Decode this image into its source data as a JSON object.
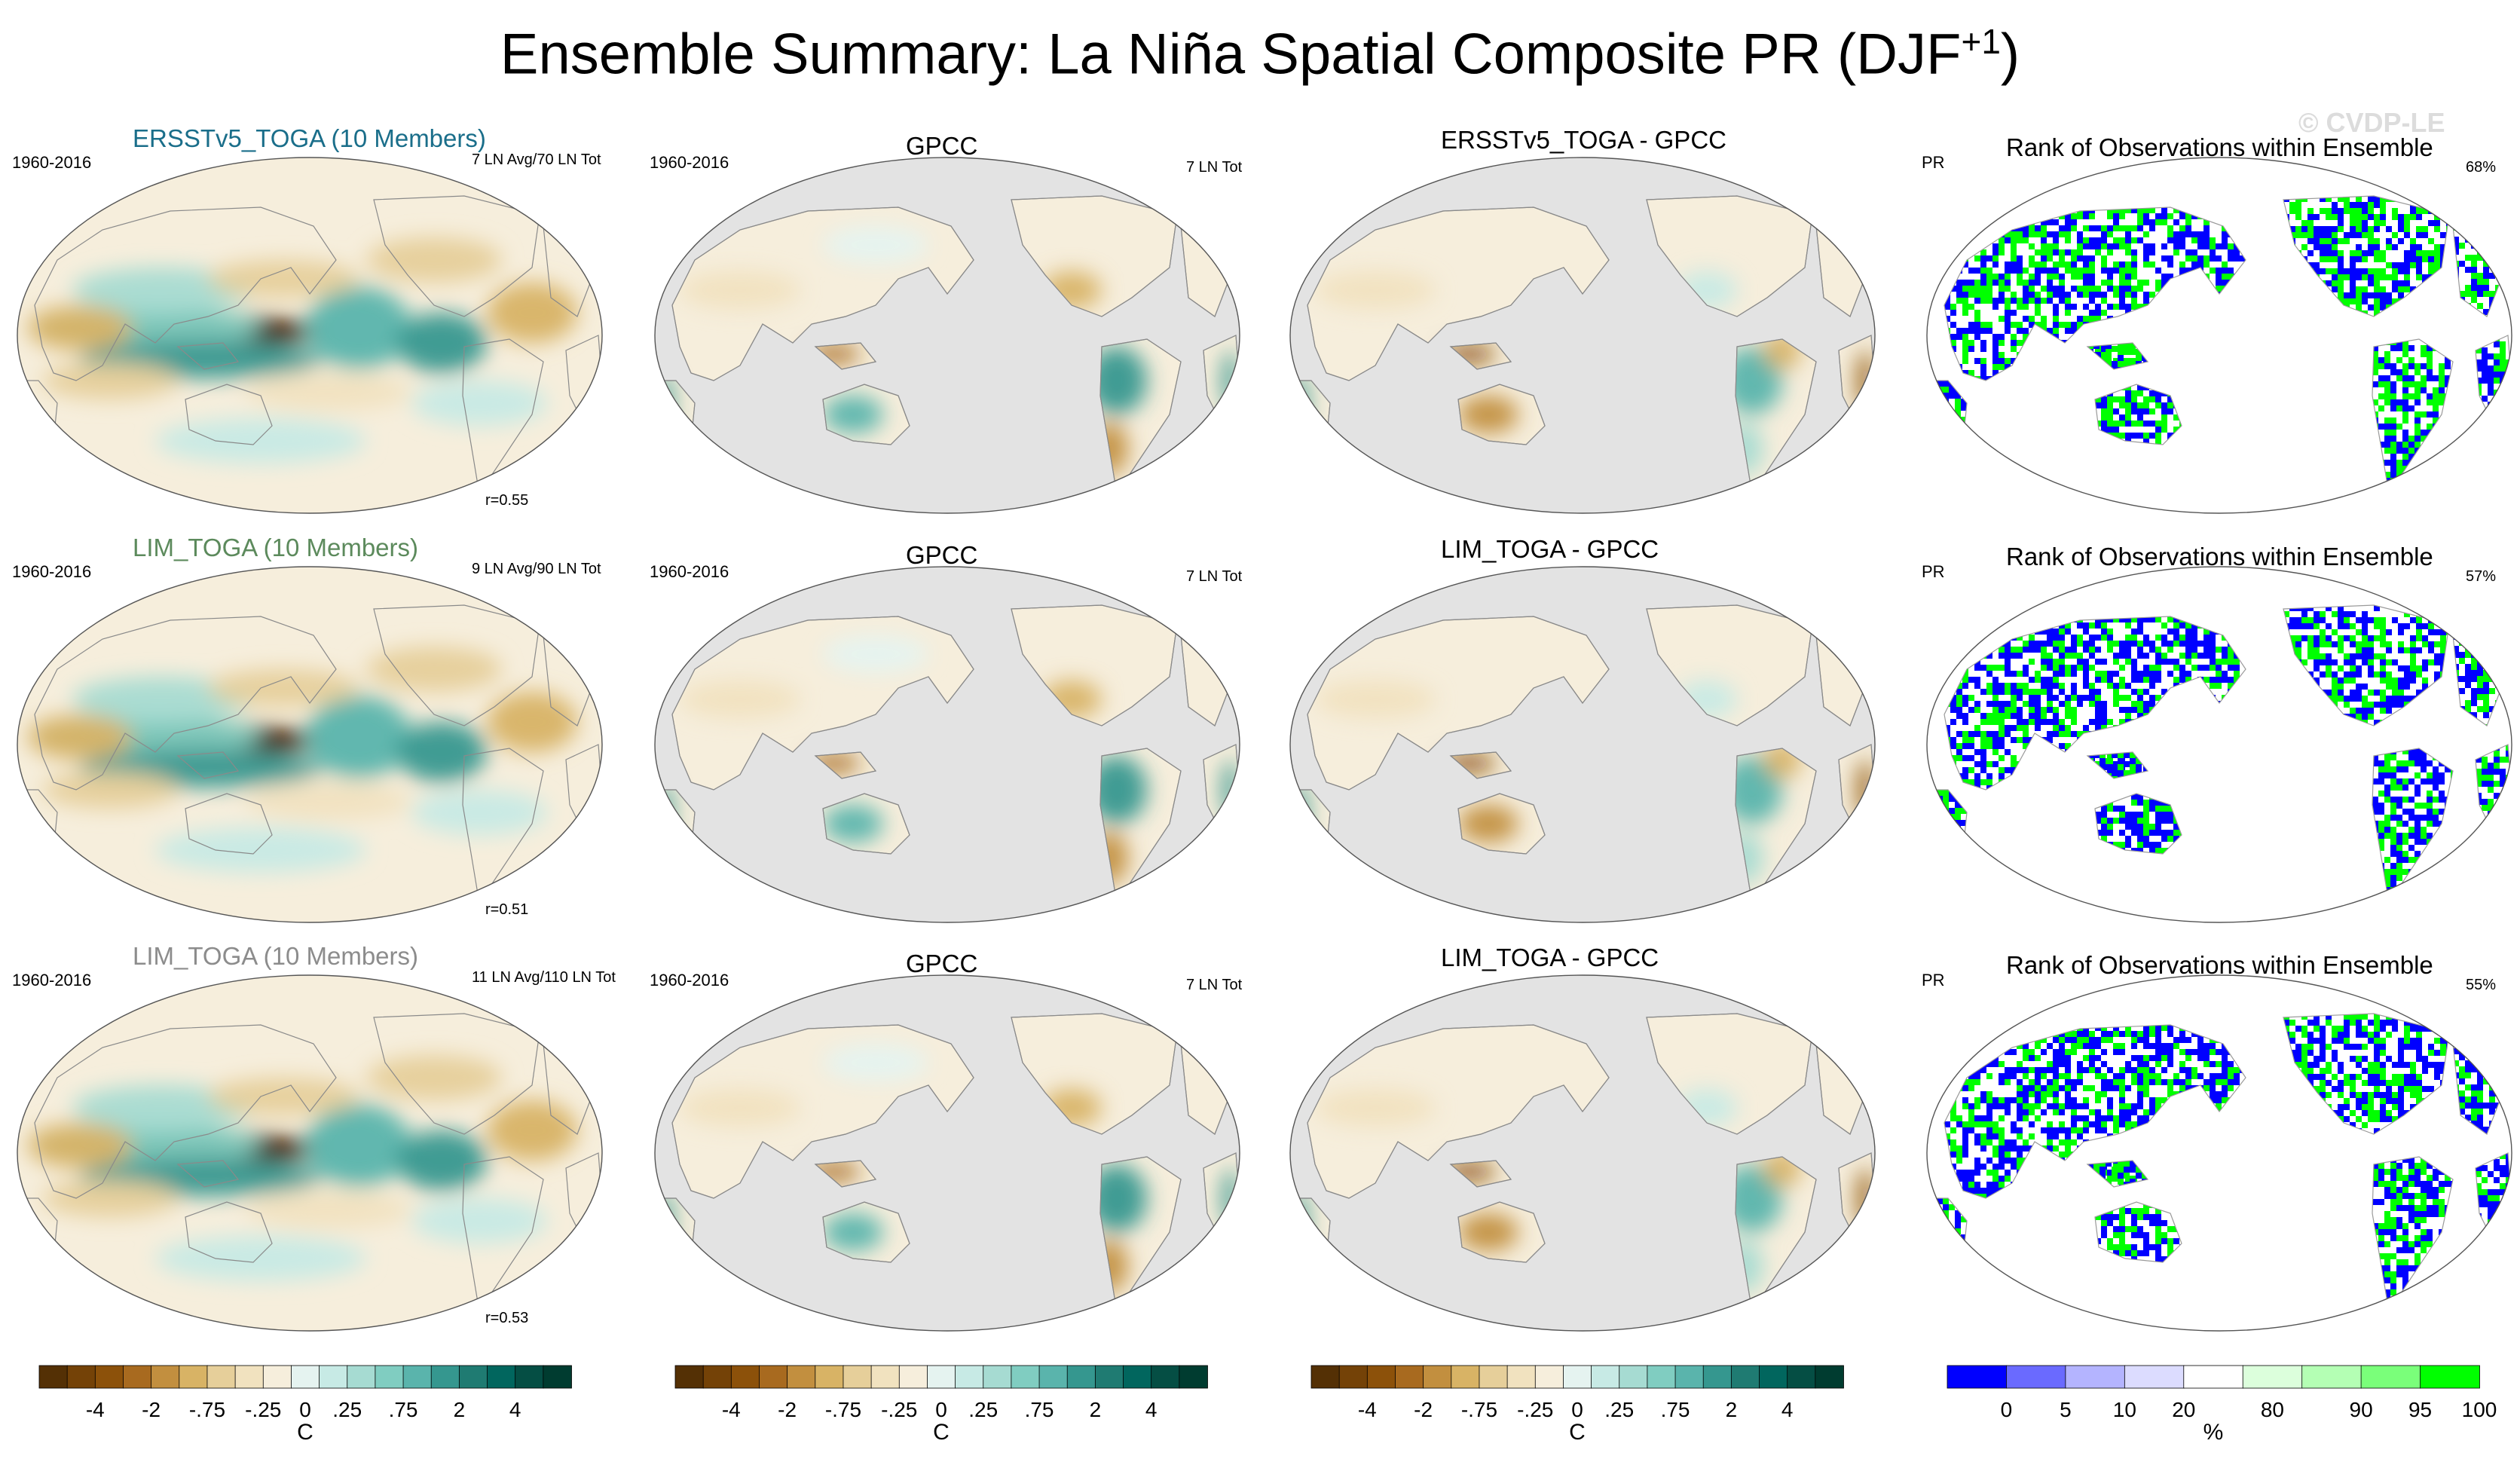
{
  "main_title": {
    "text": "Ensemble Summary: La Niña Spatial Composite PR (DJF",
    "sup": "+1",
    "close": ")"
  },
  "watermark": "© CVDP-LE",
  "chart_data": {
    "type": "heatmap",
    "title": "Ensemble Summary: La Niña Spatial Composite PR (DJF+1)",
    "rows": [
      {
        "model": {
          "title": "ERSSTv5_TOGA (10 Members)",
          "title_color": "#1a6e8a",
          "period": "1960-2016",
          "count": "7 LN Avg/70 LN Tot",
          "corr": "r=0.55",
          "r_value": 0.55
        },
        "obs": {
          "title": "GPCC",
          "period": "1960-2016",
          "count": "7 LN Tot"
        },
        "diff": {
          "title": "ERSSTv5_TOGA - GPCC"
        },
        "rank": {
          "title": "Rank of Observations within Ensemble",
          "var": "PR",
          "pct": "68%",
          "pct_value": 68
        }
      },
      {
        "model": {
          "title": "LIM_TOGA (10 Members)",
          "title_color": "#5c8a5c",
          "period": "1960-2016",
          "count": "9 LN Avg/90 LN Tot",
          "corr": "r=0.51",
          "r_value": 0.51
        },
        "obs": {
          "title": "GPCC",
          "period": "1960-2016",
          "count": "7 LN Tot"
        },
        "diff": {
          "title": "LIM_TOGA - GPCC"
        },
        "rank": {
          "title": "Rank of Observations within Ensemble",
          "var": "PR",
          "pct": "57%",
          "pct_value": 57
        }
      },
      {
        "model": {
          "title": "LIM_TOGA (10 Members)",
          "title_color": "#8c8c8c",
          "period": "1960-2016",
          "count": "11 LN Avg/110 LN Tot",
          "corr": "r=0.53",
          "r_value": 0.53
        },
        "obs": {
          "title": "GPCC",
          "period": "1960-2016",
          "count": "7 LN Tot"
        },
        "diff": {
          "title": "LIM_TOGA - GPCC"
        },
        "rank": {
          "title": "Rank of Observations within Ensemble",
          "var": "PR",
          "pct": "55%",
          "pct_value": 55
        }
      }
    ],
    "colorbar_pr": {
      "unit": "C",
      "tick_labels": [
        "-4",
        "-2",
        "-.75",
        "-.25",
        "0",
        ".25",
        ".75",
        "2",
        "4"
      ],
      "colors": [
        "#543005",
        "#744207",
        "#8c510a",
        "#a86a1f",
        "#c28f3f",
        "#d8b365",
        "#e6cf9a",
        "#f1e2bf",
        "#f6eedc",
        "#e5f3f0",
        "#c7eae5",
        "#a6dbd2",
        "#80cdc1",
        "#5ab4ac",
        "#35978f",
        "#1f7b72",
        "#01665e",
        "#054e44",
        "#003c30"
      ]
    },
    "colorbar_rank": {
      "unit": "%",
      "tick_labels": [
        "0",
        "5",
        "10",
        "20",
        "80",
        "90",
        "95",
        "100"
      ],
      "colors": [
        "#0000ff",
        "#6a6aff",
        "#b4b4ff",
        "#dcdcff",
        "#ffffff",
        "#dcffdc",
        "#b4ffb4",
        "#7aff7a",
        "#00ff00"
      ]
    }
  },
  "colors": {
    "ocean_masked": "#e3e3e3",
    "land_outline": "#8a8a8a",
    "rank_blue": "#0000ff",
    "rank_green": "#00ff00"
  }
}
